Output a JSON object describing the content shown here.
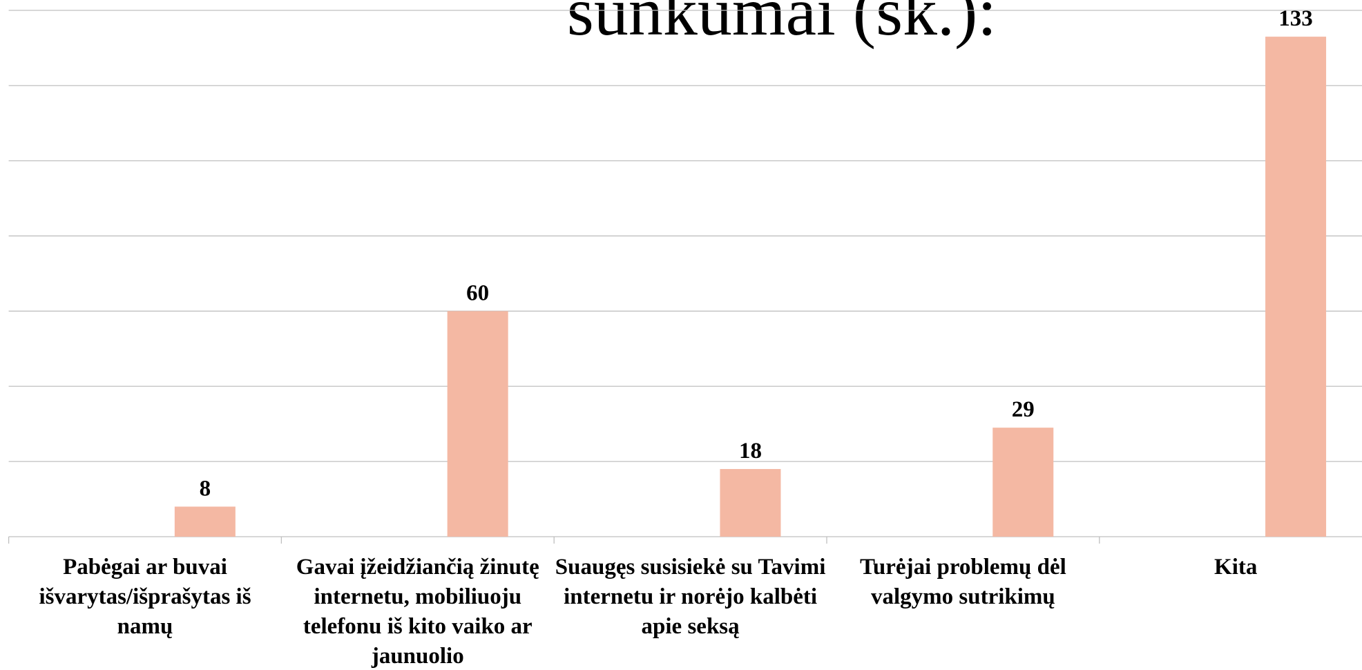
{
  "chart_data": {
    "type": "bar",
    "title": "sunkumai (sk.):",
    "categories": [
      "Pabėgai ar buvai išvarytas/išprašytas iš namų",
      "Gavai įžeidžiančią žinutę internetu, mobiliuoju telefonu iš kito vaiko ar jaunuolio",
      "Suaugęs susisiekė su Tavimi internetu ir norėjo kalbėti apie seksą",
      "Turėjai problemų dėl valgymo sutrikimų",
      "Kita"
    ],
    "values": [
      8,
      60,
      18,
      29,
      133
    ],
    "color": "#f4b8a3",
    "ylim": [
      0,
      140
    ],
    "yticks": [
      0,
      20,
      40,
      60,
      80,
      100,
      120,
      140
    ],
    "grid": true
  }
}
